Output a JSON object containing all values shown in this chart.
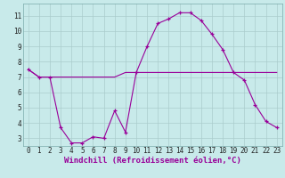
{
  "xlabel": "Windchill (Refroidissement éolien,°C)",
  "hours": [
    0,
    1,
    2,
    3,
    4,
    5,
    6,
    7,
    8,
    9,
    10,
    11,
    12,
    13,
    14,
    15,
    16,
    17,
    18,
    19,
    20,
    21,
    22,
    23
  ],
  "windchill": [
    7.5,
    7.0,
    7.0,
    3.7,
    2.7,
    2.7,
    3.1,
    3.0,
    4.8,
    3.4,
    7.3,
    9.0,
    10.5,
    10.8,
    11.2,
    11.2,
    10.7,
    9.8,
    8.8,
    7.3,
    6.8,
    5.2,
    4.1,
    3.7
  ],
  "temp": [
    7.5,
    7.0,
    7.0,
    7.0,
    7.0,
    7.0,
    7.0,
    7.0,
    7.0,
    7.3,
    7.3,
    7.3,
    7.3,
    7.3,
    7.3,
    7.3,
    7.3,
    7.3,
    7.3,
    7.3,
    7.3,
    7.3,
    7.3,
    7.3
  ],
  "line_color": "#990099",
  "bg_color": "#c8eaea",
  "grid_color": "#aacccc",
  "ylim": [
    2.5,
    11.8
  ],
  "xlim": [
    -0.5,
    23.5
  ],
  "yticks": [
    3,
    4,
    5,
    6,
    7,
    8,
    9,
    10,
    11
  ],
  "tick_fontsize": 5.5,
  "label_fontsize": 6.5
}
